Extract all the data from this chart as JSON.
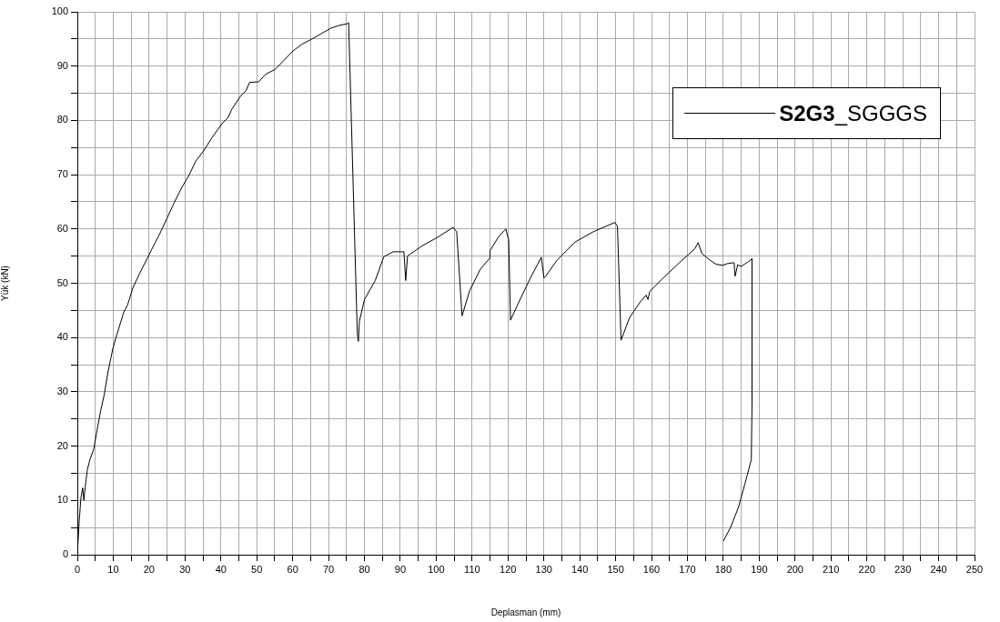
{
  "chart_data": {
    "type": "line",
    "xlabel": "Deplasman (mm)",
    "ylabel": "Yük (kN)",
    "legend": "top right",
    "grid": true,
    "xlim": [
      0,
      250
    ],
    "ylim": [
      0,
      100
    ],
    "xticks": [
      0,
      {
        "value": 5,
        "label": null
      },
      10,
      {
        "value": 15,
        "label": null
      },
      20,
      {
        "value": 25,
        "label": null
      },
      30,
      {
        "value": 35,
        "label": null
      },
      40,
      {
        "value": 45,
        "label": null
      },
      50,
      {
        "value": 55,
        "label": null
      },
      60,
      {
        "value": 65,
        "label": null
      },
      70,
      {
        "value": 75,
        "label": null
      },
      80,
      {
        "value": 85,
        "label": null
      },
      90,
      {
        "value": 95,
        "label": null
      },
      100,
      {
        "value": 105,
        "label": null
      },
      110,
      {
        "value": 115,
        "label": null
      },
      120,
      {
        "value": 125,
        "label": null
      },
      130,
      {
        "value": 135,
        "label": null
      },
      140,
      {
        "value": 145,
        "label": null
      },
      150,
      {
        "value": 155,
        "label": null
      },
      160,
      {
        "value": 165,
        "label": null
      },
      170,
      {
        "value": 175,
        "label": null
      },
      180,
      {
        "value": 185,
        "label": null
      },
      190,
      {
        "value": 195,
        "label": null
      },
      200,
      {
        "value": 205,
        "label": null
      },
      210,
      {
        "value": 215,
        "label": null
      },
      220,
      {
        "value": 225,
        "label": null
      },
      230,
      {
        "value": 235,
        "label": null
      },
      240,
      {
        "value": 245,
        "label": null
      },
      250
    ],
    "yticks": [
      0,
      {
        "value": 5,
        "label": null
      },
      10,
      {
        "value": 15,
        "label": null
      },
      20,
      {
        "value": 25,
        "label": null
      },
      30,
      {
        "value": 35,
        "label": null
      },
      40,
      {
        "value": 45,
        "label": null
      },
      50,
      {
        "value": 55,
        "label": null
      },
      60,
      {
        "value": 65,
        "label": null
      },
      70,
      {
        "value": 75,
        "label": null
      },
      80,
      {
        "value": 85,
        "label": null
      },
      90,
      {
        "value": 95,
        "label": null
      },
      100
    ],
    "series": [
      {
        "name": "S2G3_SGGGS",
        "color": "#000000",
        "x": [
          0,
          0.5,
          1,
          1.5,
          1.8,
          2.2,
          2.8,
          3.5,
          4.6,
          5.5,
          6.5,
          7.5,
          8.5,
          9.9,
          11,
          12.9,
          14,
          15.5,
          17.5,
          19.5,
          21,
          23.1,
          25,
          27.1,
          29,
          31.2,
          33,
          35.2,
          37.5,
          40.3,
          42,
          43,
          45.4,
          47,
          48,
          50.5,
          52.5,
          55.1,
          57.5,
          60.1,
          62.5,
          65.7,
          68,
          70.7,
          73,
          75.2,
          75.6,
          78,
          78.3,
          78.6,
          80,
          83,
          85.4,
          88,
          91,
          91.5,
          92,
          92.6,
          96.1,
          100.2,
          104.7,
          105.7,
          107.2,
          109.3,
          112.3,
          114.9,
          115,
          117.4,
          119.4,
          120.2,
          120.7,
          123.5,
          126.5,
          129.3,
          130,
          130.5,
          133.6,
          138.7,
          143.8,
          149.8,
          150.5,
          151.5,
          153.9,
          157,
          158.5,
          159,
          159.5,
          163,
          168.1,
          172,
          173,
          174,
          176.2,
          178,
          179.8,
          181,
          183,
          183.3,
          184,
          185,
          187,
          188,
          188,
          187.8,
          186,
          184.2,
          182,
          180
        ],
        "values": [
          0,
          6,
          10.5,
          12.3,
          10,
          12.5,
          15.7,
          17.5,
          19.5,
          23,
          26.5,
          29.5,
          33.5,
          38,
          40.5,
          44.6,
          46,
          49.2,
          52,
          54.6,
          56.6,
          59.3,
          62,
          65,
          67.5,
          70,
          72.5,
          74.4,
          76.8,
          79.4,
          80.5,
          82,
          84.4,
          85.5,
          87,
          87.1,
          88.5,
          89.4,
          91,
          92.8,
          94,
          95.1,
          96,
          97,
          97.5,
          97.8,
          98,
          41,
          39.3,
          43,
          47,
          50.5,
          54.9,
          55.8,
          55.8,
          50.5,
          55,
          55.3,
          56.9,
          58.4,
          60.3,
          59.5,
          44,
          48.6,
          52.6,
          54.6,
          56,
          58.6,
          60,
          58,
          43.2,
          47.2,
          51.3,
          54.8,
          51,
          51.3,
          54.2,
          57.6,
          59.5,
          61.2,
          60.5,
          39.5,
          43.7,
          46.7,
          47.8,
          47,
          48.5,
          50.8,
          54,
          56.3,
          57.5,
          55.5,
          54.3,
          53.5,
          53.3,
          53.6,
          53.8,
          51.3,
          53.4,
          53.1,
          54,
          54.5,
          28,
          17.5,
          13,
          8.7,
          5,
          2.5
        ]
      }
    ]
  }
}
